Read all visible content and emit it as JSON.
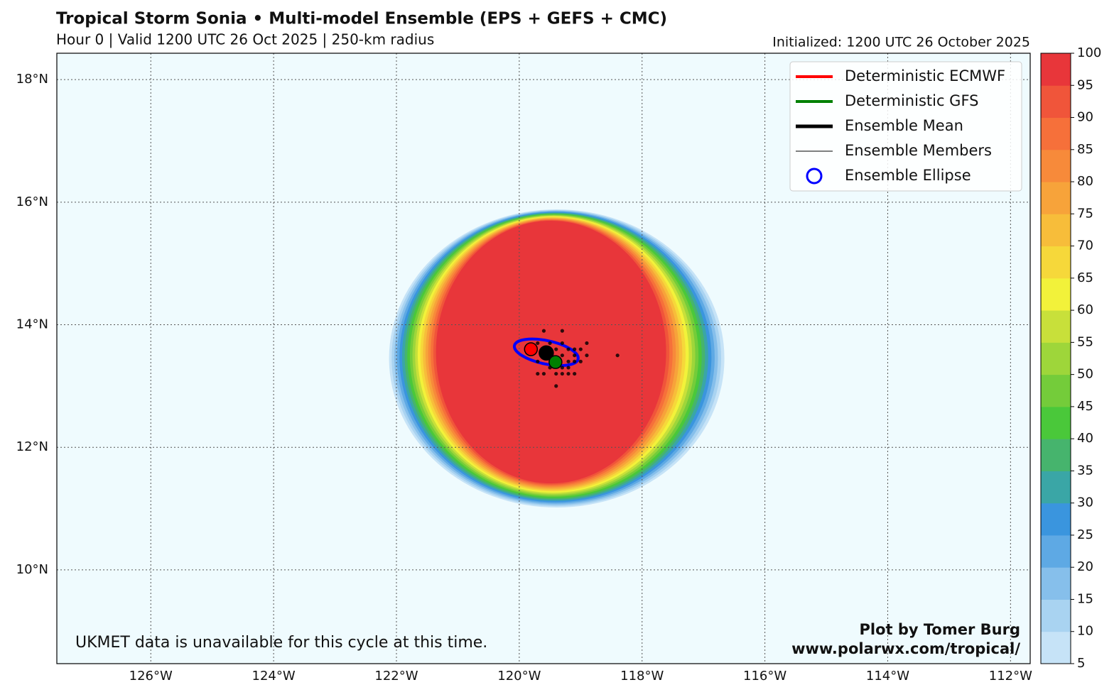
{
  "chart_data": {
    "type": "map",
    "title": "Tropical Storm Sonia • Multi-model Ensemble (EPS + GEFS + CMC)",
    "subtitle": "Hour 0 | Valid 1200 UTC 26 Oct 2025 | 250-km radius",
    "initialized": "Initialized: 1200 UTC 26 October 2025",
    "note": "UKMET data is unavailable for this cycle at this time.",
    "credit": [
      "Plot by Tomer Burg",
      "www.polarwx.com/tropical/"
    ],
    "xlim": [
      -127.53,
      -111.68
    ],
    "ylim": [
      8.47,
      18.43
    ],
    "xticks": [
      {
        "value": -126,
        "label": "126°W"
      },
      {
        "value": -124,
        "label": "124°W"
      },
      {
        "value": -122,
        "label": "122°W"
      },
      {
        "value": -120,
        "label": "120°W"
      },
      {
        "value": -118,
        "label": "118°W"
      },
      {
        "value": -116,
        "label": "116°W"
      },
      {
        "value": -114,
        "label": "114°W"
      },
      {
        "value": -112,
        "label": "112°W"
      }
    ],
    "yticks": [
      {
        "value": 10,
        "label": "10°N"
      },
      {
        "value": 12,
        "label": "12°N"
      },
      {
        "value": 14,
        "label": "14°N"
      },
      {
        "value": 16,
        "label": "16°N"
      },
      {
        "value": 18,
        "label": "18°N"
      }
    ],
    "grid": true,
    "legend_loc": "upper right",
    "series": [
      {
        "name": "Deterministic ECMWF",
        "color": "#ff0000",
        "x": [
          -119.81
        ],
        "y": [
          13.6
        ]
      },
      {
        "name": "Deterministic GFS",
        "color": "#008000",
        "x": [
          -119.41
        ],
        "y": [
          13.39
        ]
      },
      {
        "name": "Ensemble Mean",
        "color": "#000000",
        "x": [
          -119.56
        ],
        "y": [
          13.54
        ]
      },
      {
        "name": "Ensemble Members",
        "color": "#000000",
        "x": [
          -119.6,
          -119.3,
          -119.7,
          -119.5,
          -119.3,
          -118.9,
          -119.4,
          -119.2,
          -119.1,
          -119.0,
          -119.5,
          -119.3,
          -119.1,
          -118.9,
          -118.4,
          -119.7,
          -119.2,
          -119.1,
          -119.0,
          -119.5,
          -119.3,
          -119.2,
          -119.7,
          -119.6,
          -119.4,
          -119.3,
          -119.2,
          -119.1,
          -119.4
        ],
        "y": [
          13.9,
          13.9,
          13.7,
          13.7,
          13.7,
          13.7,
          13.6,
          13.6,
          13.6,
          13.6,
          13.5,
          13.5,
          13.5,
          13.5,
          13.5,
          13.4,
          13.4,
          13.4,
          13.4,
          13.3,
          13.3,
          13.3,
          13.2,
          13.2,
          13.2,
          13.2,
          13.2,
          13.2,
          13.0
        ]
      },
      {
        "name": "Ensemble Ellipse",
        "color": "#0000ff",
        "center": [
          -119.56,
          13.55
        ],
        "width": 1.06,
        "height": 0.38,
        "angle": -12
      }
    ],
    "colorbar": {
      "levels": [
        5,
        10,
        15,
        20,
        25,
        30,
        35,
        40,
        45,
        50,
        55,
        60,
        65,
        70,
        75,
        80,
        85,
        90,
        95,
        100
      ],
      "colors": [
        "#c6e3f7",
        "#a9d3f1",
        "#86bfeb",
        "#5ea9e4",
        "#3a95de",
        "#3aa6a6",
        "#46b46d",
        "#4ac83a",
        "#74cc3a",
        "#9ed63a",
        "#c8e03a",
        "#f2f23a",
        "#f6d83a",
        "#f7bd3a",
        "#f7a33a",
        "#f78a3a",
        "#f6703a",
        "#f0553a",
        "#e8363a"
      ]
    }
  }
}
